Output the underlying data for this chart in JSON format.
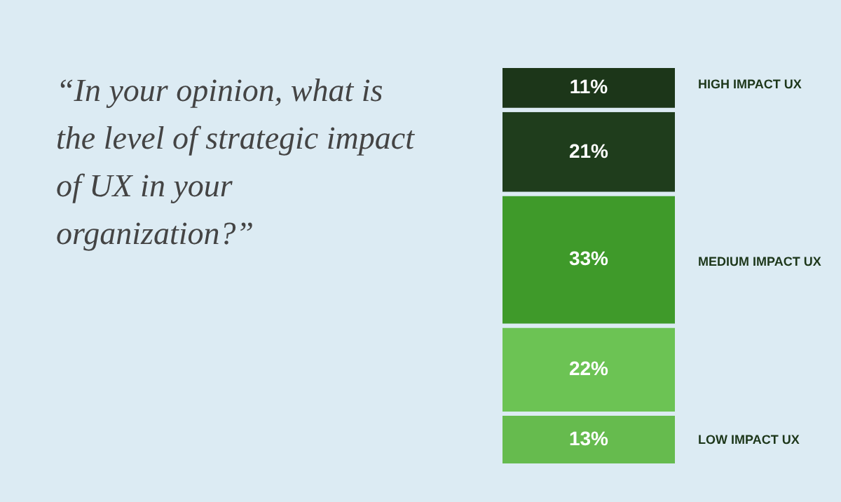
{
  "chart_data": {
    "type": "bar",
    "stacked": true,
    "title": "“In your opinion, what is the level of strategic impact of UX in your organization?”",
    "categories": [
      null
    ],
    "series": [
      {
        "color": "#66bb4e",
        "values": [
          13
        ],
        "value_labels": [
          "13%"
        ]
      },
      {
        "color": "#6cc354",
        "values": [
          22
        ],
        "value_labels": [
          "22%"
        ]
      },
      {
        "color": "#3f9a2a",
        "values": [
          33
        ],
        "value_labels": [
          "33%"
        ]
      },
      {
        "color": "#1f3d1c",
        "values": [
          21
        ],
        "value_labels": [
          "21%"
        ]
      },
      {
        "color": "#1c3619",
        "values": [
          11
        ],
        "value_labels": [
          "11%"
        ]
      }
    ],
    "annotations": [
      "HIGH IMPACT UX",
      "MEDIUM IMPACT UX",
      "LOW IMPACT UX"
    ],
    "legend": false
  }
}
